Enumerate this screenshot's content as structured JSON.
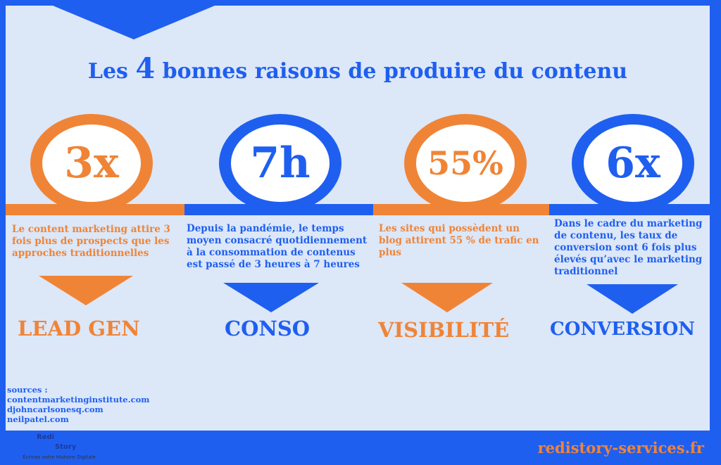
{
  "title": {
    "prefix": "Les ",
    "number": "4",
    "suffix": "  bonnes raisons de produire du contenu"
  },
  "items": [
    {
      "stat": "3x",
      "text": "Le content marketing attire 3 fois plus de prospects que les approches traditionnelles",
      "label": "LEAD GEN"
    },
    {
      "stat": "7h",
      "text": "Depuis la pandémie, le temps moyen consacré quotidiennement à la consommation de contenus est passé de 3 heures  à 7 heures",
      "label": "CONSO"
    },
    {
      "stat": "55%",
      "text": "Les sites qui possèdent un blog attirent 55 % de trafic en plus",
      "label": "VISIBILITÉ"
    },
    {
      "stat": "6x",
      "text": "Dans le cadre du marketing de contenu, les taux de conversion sont 6 fois plus élevés qu’avec le marketing traditionnel",
      "label": "CONVERSION"
    }
  ],
  "sources": {
    "heading": "sources :",
    "list": [
      "contentmarketinginstitute.com",
      "djohncarlsonesq.com",
      "neilpatel.com"
    ]
  },
  "logo": {
    "word1": "Redi",
    "word2": "Story",
    "tagline": "Écrivez votre Histoire Digitale"
  },
  "site": "redistory-services.fr",
  "colors": {
    "orange": "#f08436",
    "blue": "#1f5ff0",
    "panel": "#dce7f8"
  }
}
